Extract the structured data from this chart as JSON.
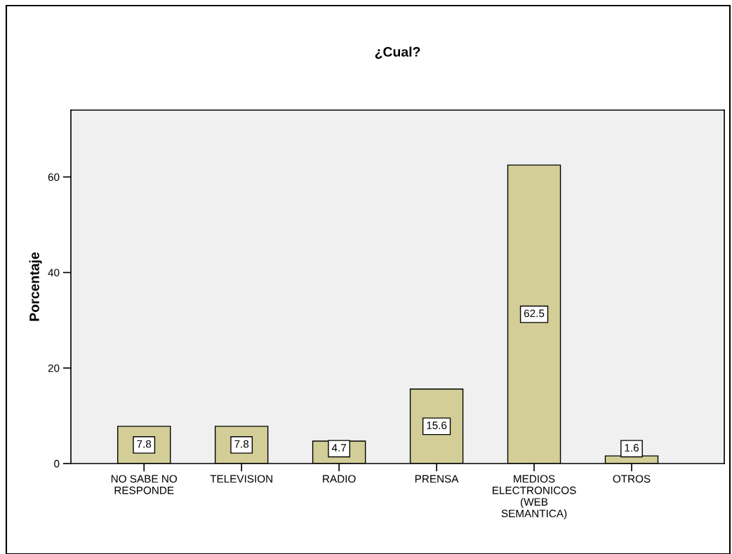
{
  "chart_data": {
    "type": "bar",
    "title": "¿Cual?",
    "ylabel": "Porcentaje",
    "categories": [
      "NO SABE NO\nRESPONDE",
      "TELEVISION",
      "RADIO",
      "PRENSA",
      "MEDIOS\nELECTRONICOS\n(WEB\nSEMANTICA)",
      "OTROS"
    ],
    "values": [
      7.8,
      7.8,
      4.7,
      15.6,
      62.5,
      1.6
    ],
    "color": "#d3ce97",
    "ylim": [
      0,
      74
    ],
    "yticks": [
      0,
      20,
      40,
      60
    ],
    "data_labels": true,
    "grid": false
  }
}
